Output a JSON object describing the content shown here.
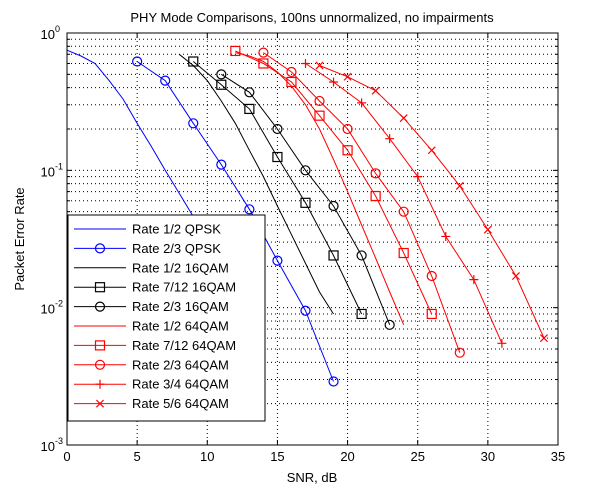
{
  "chart_data": {
    "type": "line",
    "title": "PHY Mode Comparisons, 100ns unnormalized, no impairments",
    "xlabel": "SNR, dB",
    "ylabel": "Packet Error Rate",
    "xlim": [
      0,
      35
    ],
    "ylim": [
      0.001,
      1
    ],
    "yscale": "log",
    "xticks": [
      0,
      5,
      10,
      15,
      20,
      25,
      30,
      35
    ],
    "xtick_labels": [
      "0",
      "5",
      "10",
      "15",
      "20",
      "25",
      "30",
      "35"
    ],
    "yticks": [
      {
        "base": "10",
        "exp": "0",
        "value": 1
      },
      {
        "base": "10",
        "exp": "-1",
        "value": 0.1
      },
      {
        "base": "10",
        "exp": "-2",
        "value": 0.01
      },
      {
        "base": "10",
        "exp": "-3",
        "value": 0.001
      }
    ],
    "grid": "major and minor, dotted",
    "legend_position": "lower-left",
    "series": [
      {
        "name": "Rate 1/2 QPSK",
        "color": "#0000ff",
        "marker": "none",
        "x": [
          0,
          1,
          2,
          3,
          4,
          5,
          6,
          7,
          8,
          9,
          10,
          11,
          12,
          13,
          14
        ],
        "y": [
          0.75,
          0.68,
          0.6,
          0.45,
          0.33,
          0.22,
          0.15,
          0.1,
          0.068,
          0.046,
          0.03,
          0.021,
          0.014,
          0.0095,
          0.0063
        ]
      },
      {
        "name": "Rate 2/3 QPSK",
        "color": "#0000ff",
        "marker": "circle",
        "x": [
          5,
          7,
          9,
          11,
          13,
          15,
          17,
          19
        ],
        "y": [
          0.62,
          0.45,
          0.22,
          0.11,
          0.052,
          0.022,
          0.0095,
          0.0029
        ]
      },
      {
        "name": "Rate 1/2 16QAM",
        "color": "#000000",
        "marker": "none",
        "x": [
          8,
          9,
          10,
          11,
          12,
          13,
          14,
          15,
          16,
          17,
          18,
          19
        ],
        "y": [
          0.7,
          0.58,
          0.45,
          0.32,
          0.22,
          0.14,
          0.09,
          0.055,
          0.034,
          0.021,
          0.013,
          0.009
        ]
      },
      {
        "name": "Rate 7/12 16QAM",
        "color": "#000000",
        "marker": "square",
        "x": [
          9,
          11,
          13,
          15,
          17,
          19,
          21
        ],
        "y": [
          0.62,
          0.42,
          0.28,
          0.125,
          0.058,
          0.024,
          0.009
        ]
      },
      {
        "name": "Rate 2/3 16QAM",
        "color": "#000000",
        "marker": "circle",
        "x": [
          11,
          13,
          15,
          17,
          19,
          21,
          23
        ],
        "y": [
          0.5,
          0.37,
          0.2,
          0.1,
          0.055,
          0.024,
          0.0075
        ]
      },
      {
        "name": "Rate 1/2 64QAM",
        "color": "#ff0000",
        "marker": "none",
        "x": [
          12,
          13,
          14,
          15,
          16,
          17,
          18,
          19,
          20,
          21,
          22,
          23,
          24
        ],
        "y": [
          0.72,
          0.68,
          0.62,
          0.52,
          0.41,
          0.3,
          0.2,
          0.12,
          0.07,
          0.04,
          0.023,
          0.013,
          0.0075
        ]
      },
      {
        "name": "Rate 7/12 64QAM",
        "color": "#ff0000",
        "marker": "square",
        "x": [
          12,
          14,
          16,
          18,
          20,
          22,
          24,
          26
        ],
        "y": [
          0.74,
          0.6,
          0.44,
          0.25,
          0.14,
          0.065,
          0.025,
          0.009
        ]
      },
      {
        "name": "Rate 2/3 64QAM",
        "color": "#ff0000",
        "marker": "circle",
        "x": [
          14,
          16,
          18,
          20,
          22,
          24,
          26,
          28
        ],
        "y": [
          0.72,
          0.52,
          0.32,
          0.2,
          0.095,
          0.05,
          0.017,
          0.0047
        ]
      },
      {
        "name": "Rate 3/4 64QAM",
        "color": "#ff0000",
        "marker": "plus",
        "x": [
          17,
          19,
          21,
          23,
          25,
          27,
          29,
          31
        ],
        "y": [
          0.6,
          0.44,
          0.31,
          0.17,
          0.09,
          0.033,
          0.016,
          0.0055
        ]
      },
      {
        "name": "Rate 5/6 64QAM",
        "color": "#ff0000",
        "marker": "x",
        "x": [
          18,
          20,
          22,
          24,
          26,
          28,
          30,
          32,
          34
        ],
        "y": [
          0.58,
          0.48,
          0.38,
          0.24,
          0.14,
          0.077,
          0.037,
          0.017,
          0.006
        ]
      }
    ]
  }
}
